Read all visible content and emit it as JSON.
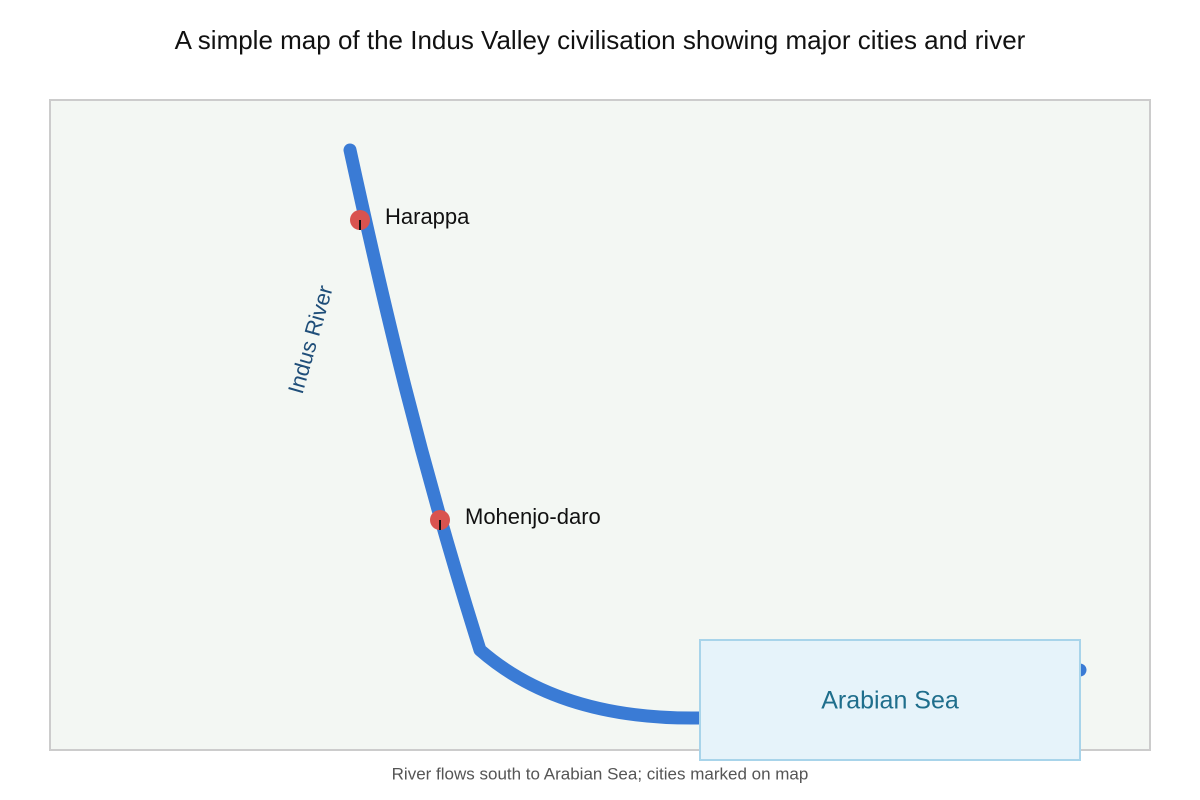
{
  "title": "A simple map of the Indus Valley civilisation showing major cities and river",
  "river": {
    "label": "Indus River"
  },
  "cities": [
    {
      "name": "Harappa"
    },
    {
      "name": "Mohenjo-daro"
    }
  ],
  "sea": {
    "label": "Arabian Sea"
  },
  "caption": "River flows south to Arabian Sea; cities marked on map"
}
